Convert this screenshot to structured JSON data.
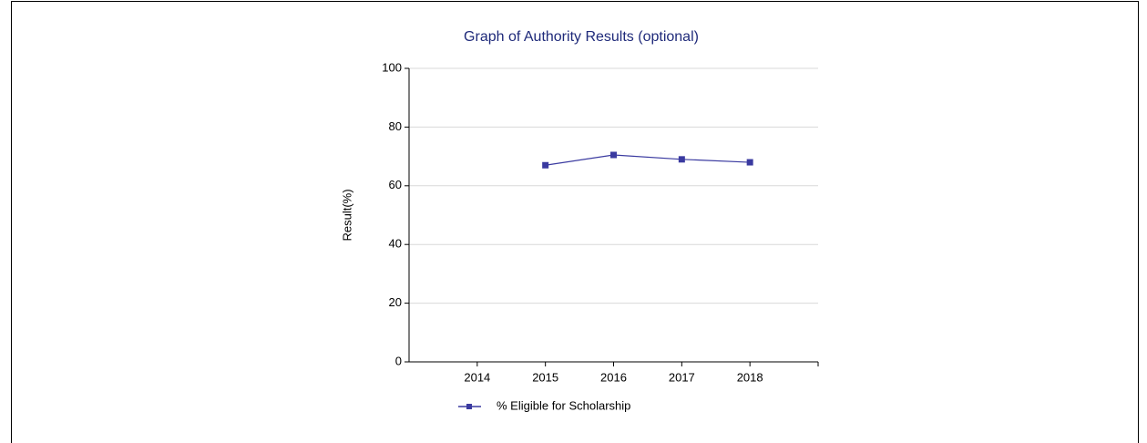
{
  "chart_data": {
    "type": "line",
    "title": "Graph of Authority Results (optional)",
    "y_label": "Result(%)",
    "x": [
      2015,
      2016,
      2017,
      2018
    ],
    "series": [
      {
        "name": "% Eligible for Scholarship",
        "color": "#3a3aa0",
        "values": [
          67,
          70.5,
          69,
          68
        ]
      }
    ],
    "xlim": [
      2013,
      2019
    ],
    "xticks": [
      2014,
      2015,
      2016,
      2017,
      2018
    ],
    "ylim": [
      0,
      100
    ],
    "yticks": [
      0,
      20,
      40,
      60,
      80,
      100
    ],
    "grid": true
  }
}
